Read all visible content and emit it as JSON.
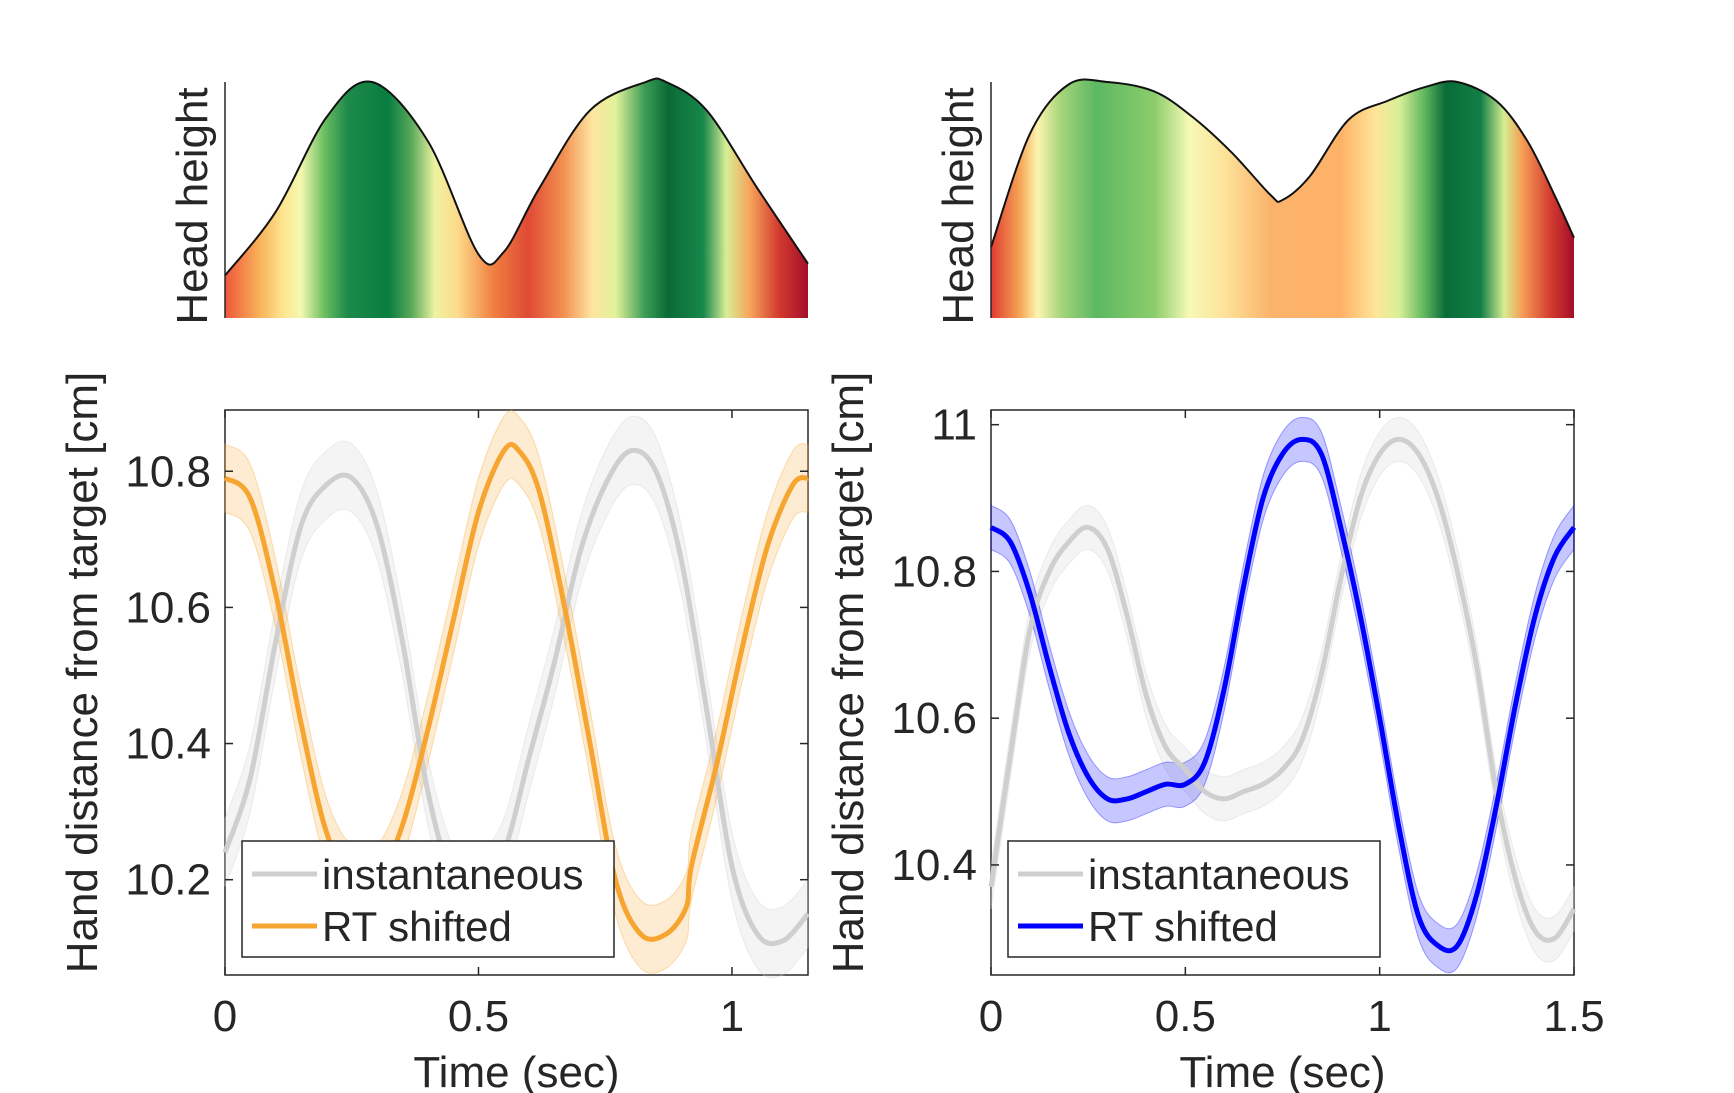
{
  "chart_data": [
    {
      "type": "area",
      "panel": "left-top",
      "ylabel": "Head height",
      "xlim": [
        0,
        1.15
      ],
      "ylim": [
        0,
        1
      ],
      "fill": "vertical bands colored red-yellow-green along time",
      "x": [
        0,
        0.1,
        0.2,
        0.29,
        0.4,
        0.5,
        0.55,
        0.62,
        0.72,
        0.83,
        0.87,
        0.95,
        1.05,
        1.15
      ],
      "values": [
        0.18,
        0.45,
        0.85,
        1.0,
        0.75,
        0.27,
        0.28,
        0.55,
        0.88,
        1.0,
        1.0,
        0.88,
        0.55,
        0.23
      ]
    },
    {
      "type": "line",
      "panel": "left-bottom",
      "xlabel": "Time (sec)",
      "ylabel": "Hand distance from target [cm]",
      "xlim": [
        0,
        1.15
      ],
      "ylim": [
        10.06,
        10.89
      ],
      "xticks": [
        "0",
        "0.5",
        "1"
      ],
      "xtick_values": [
        0,
        0.5,
        1
      ],
      "yticks": [
        "10.2",
        "10.4",
        "10.6",
        "10.8"
      ],
      "ytick_values": [
        10.2,
        10.4,
        10.6,
        10.8
      ],
      "legend": "bottom-left",
      "band_width": 0.05,
      "series": [
        {
          "name": "instantaneous",
          "color": "#cfcfcf",
          "x": [
            0,
            0.05,
            0.1,
            0.15,
            0.2,
            0.25,
            0.3,
            0.35,
            0.4,
            0.45,
            0.5,
            0.55,
            0.6,
            0.65,
            0.7,
            0.75,
            0.8,
            0.85,
            0.9,
            0.95,
            1.0,
            1.05,
            1.1,
            1.15
          ],
          "values": [
            10.24,
            10.35,
            10.55,
            10.72,
            10.78,
            10.79,
            10.72,
            10.55,
            10.33,
            10.2,
            10.19,
            10.24,
            10.38,
            10.52,
            10.68,
            10.78,
            10.83,
            10.8,
            10.67,
            10.45,
            10.22,
            10.12,
            10.11,
            10.15
          ]
        },
        {
          "name": "RT shifted",
          "color": "#f7a531",
          "x": [
            0,
            0.05,
            0.1,
            0.15,
            0.2,
            0.25,
            0.3,
            0.35,
            0.4,
            0.45,
            0.5,
            0.55,
            0.58,
            0.62,
            0.67,
            0.72,
            0.77,
            0.82,
            0.87,
            0.91,
            0.92,
            0.97,
            1.02,
            1.07,
            1.12,
            1.15
          ],
          "values": [
            10.79,
            10.76,
            10.62,
            10.43,
            10.27,
            10.2,
            10.2,
            10.28,
            10.42,
            10.58,
            10.74,
            10.83,
            10.83,
            10.77,
            10.6,
            10.4,
            10.2,
            10.12,
            10.12,
            10.16,
            10.22,
            10.37,
            10.54,
            10.69,
            10.78,
            10.79
          ]
        }
      ]
    },
    {
      "type": "area",
      "panel": "right-top",
      "ylabel": "Head height",
      "xlim": [
        0,
        1.5
      ],
      "ylim": [
        0,
        1
      ],
      "fill": "vertical bands colored red-yellow-green along time",
      "x": [
        0,
        0.1,
        0.2,
        0.3,
        0.42,
        0.52,
        0.62,
        0.72,
        0.75,
        0.82,
        0.92,
        1.02,
        1.12,
        1.2,
        1.3,
        1.38,
        1.45,
        1.5
      ],
      "values": [
        0.3,
        0.78,
        0.99,
        1.0,
        0.96,
        0.85,
        0.7,
        0.52,
        0.5,
        0.6,
        0.84,
        0.92,
        0.98,
        1.0,
        0.92,
        0.75,
        0.52,
        0.34
      ]
    },
    {
      "type": "line",
      "panel": "right-bottom",
      "xlabel": "Time (sec)",
      "ylabel": "Hand distance from target [cm]",
      "xlim": [
        0,
        1.5
      ],
      "ylim": [
        10.25,
        11.02
      ],
      "xticks": [
        "0",
        "0.5",
        "1",
        "1.5"
      ],
      "xtick_values": [
        0,
        0.5,
        1,
        1.5
      ],
      "yticks": [
        "10.4",
        "10.6",
        "10.8",
        "11"
      ],
      "ytick_values": [
        10.4,
        10.6,
        10.8,
        11.0
      ],
      "legend": "bottom-left",
      "band_width": 0.03,
      "series": [
        {
          "name": "instantaneous",
          "color": "#cfcfcf",
          "x": [
            0,
            0.05,
            0.1,
            0.15,
            0.2,
            0.25,
            0.3,
            0.35,
            0.4,
            0.45,
            0.5,
            0.55,
            0.6,
            0.65,
            0.7,
            0.75,
            0.8,
            0.85,
            0.9,
            0.95,
            1.0,
            1.05,
            1.1,
            1.15,
            1.2,
            1.25,
            1.3,
            1.35,
            1.4,
            1.45,
            1.5
          ],
          "values": [
            10.37,
            10.55,
            10.72,
            10.8,
            10.84,
            10.86,
            10.83,
            10.74,
            10.63,
            10.56,
            10.53,
            10.5,
            10.49,
            10.5,
            10.51,
            10.53,
            10.57,
            10.66,
            10.79,
            10.9,
            10.96,
            10.98,
            10.96,
            10.9,
            10.8,
            10.67,
            10.5,
            10.38,
            10.31,
            10.3,
            10.34
          ]
        },
        {
          "name": "RT shifted",
          "color": "#0000ff",
          "x": [
            0,
            0.05,
            0.1,
            0.15,
            0.2,
            0.25,
            0.3,
            0.35,
            0.4,
            0.45,
            0.5,
            0.55,
            0.6,
            0.65,
            0.7,
            0.75,
            0.8,
            0.85,
            0.9,
            0.95,
            1.0,
            1.05,
            1.1,
            1.15,
            1.2,
            1.25,
            1.3,
            1.35,
            1.4,
            1.45,
            1.5
          ],
          "values": [
            10.86,
            10.84,
            10.77,
            10.67,
            10.58,
            10.52,
            10.49,
            10.49,
            10.5,
            10.51,
            10.51,
            10.54,
            10.64,
            10.78,
            10.9,
            10.96,
            10.98,
            10.96,
            10.86,
            10.74,
            10.6,
            10.45,
            10.33,
            10.29,
            10.29,
            10.36,
            10.48,
            10.62,
            10.74,
            10.82,
            10.86
          ]
        }
      ]
    }
  ]
}
